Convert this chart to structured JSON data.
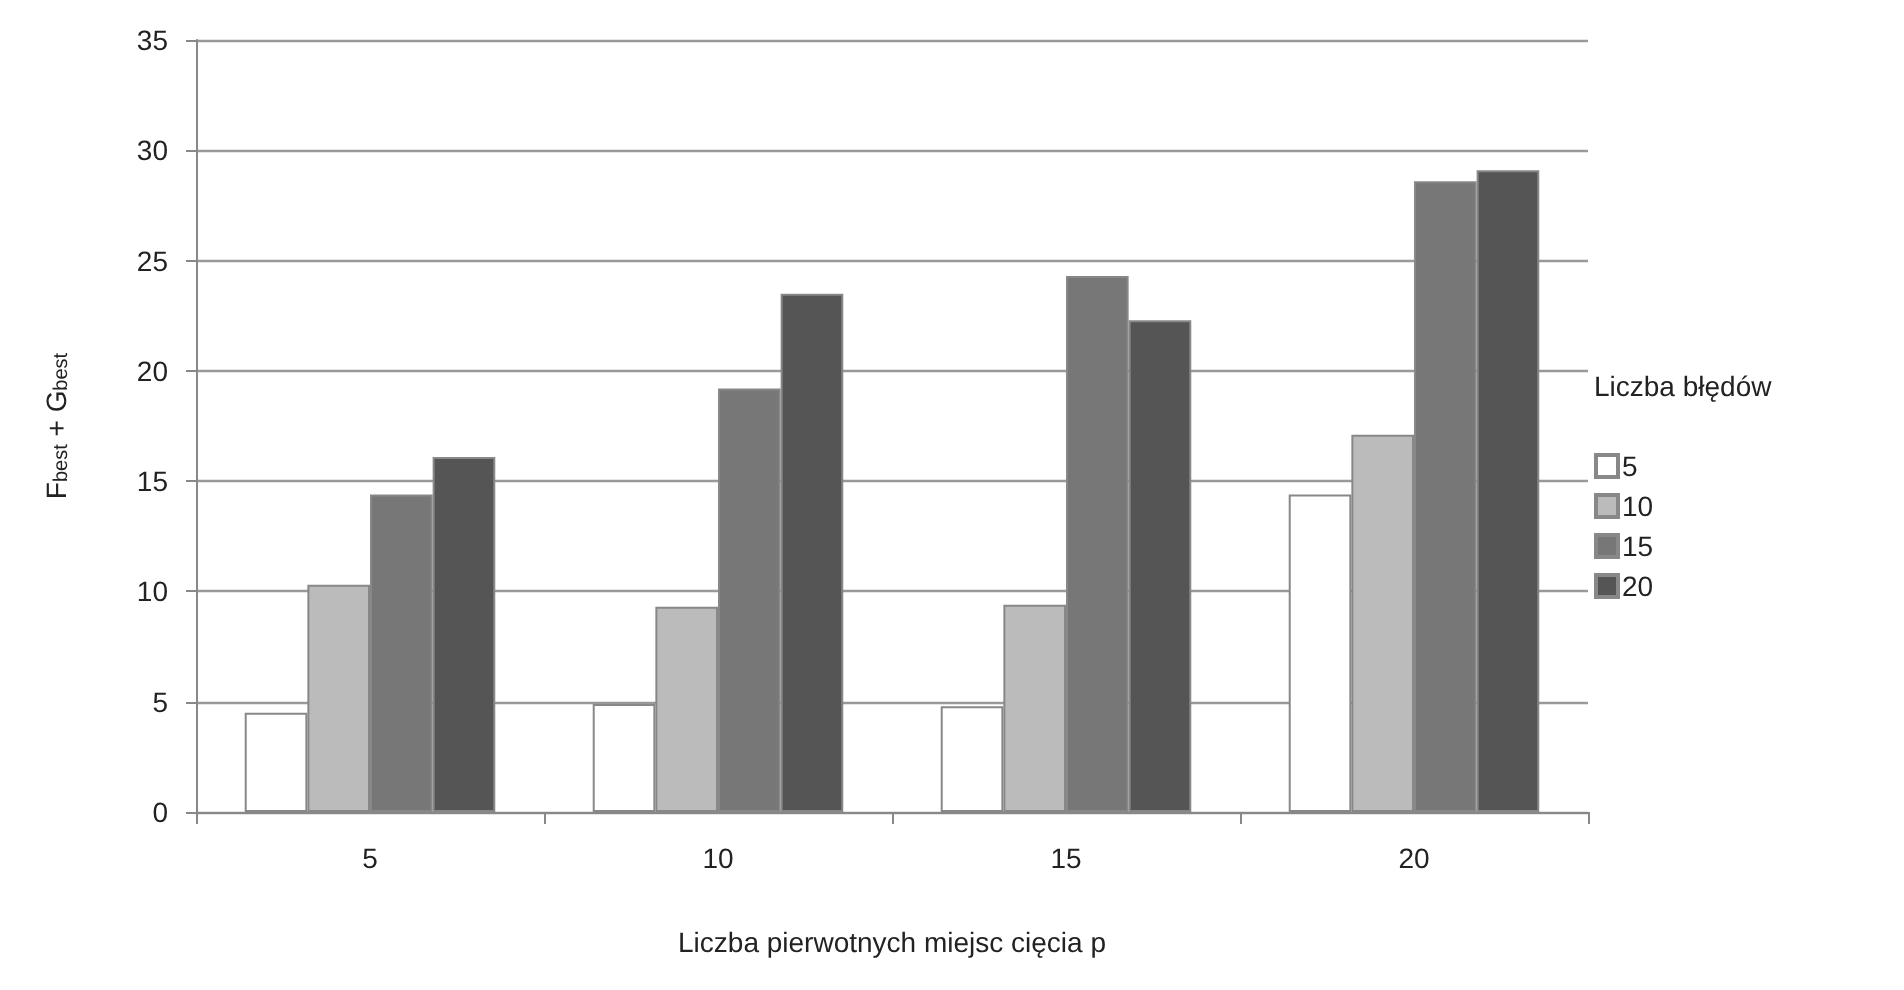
{
  "chart_data": {
    "type": "bar",
    "categories": [
      "5",
      "10",
      "15",
      "20"
    ],
    "series": [
      {
        "name": "5",
        "color": "#ffffff",
        "values": [
          4.5,
          4.9,
          4.8,
          14.4
        ]
      },
      {
        "name": "10",
        "color": "#bbbbbb",
        "values": [
          10.3,
          9.3,
          9.4,
          17.1
        ]
      },
      {
        "name": "15",
        "color": "#777777",
        "values": [
          14.4,
          19.2,
          24.3,
          28.6
        ]
      },
      {
        "name": "20",
        "color": "#555555",
        "values": [
          16.1,
          23.5,
          22.3,
          29.1
        ]
      }
    ],
    "xlabel": "Liczba pierwotnych miejsc cięcia p",
    "ylabel": "F$_{best}$ + G$_{best}$",
    "legend_title": "Liczba błędów",
    "ylim": [
      0,
      35
    ],
    "yticks": [
      0,
      5,
      10,
      15,
      20,
      25,
      30,
      35
    ],
    "grid": "y",
    "legend": "right"
  }
}
